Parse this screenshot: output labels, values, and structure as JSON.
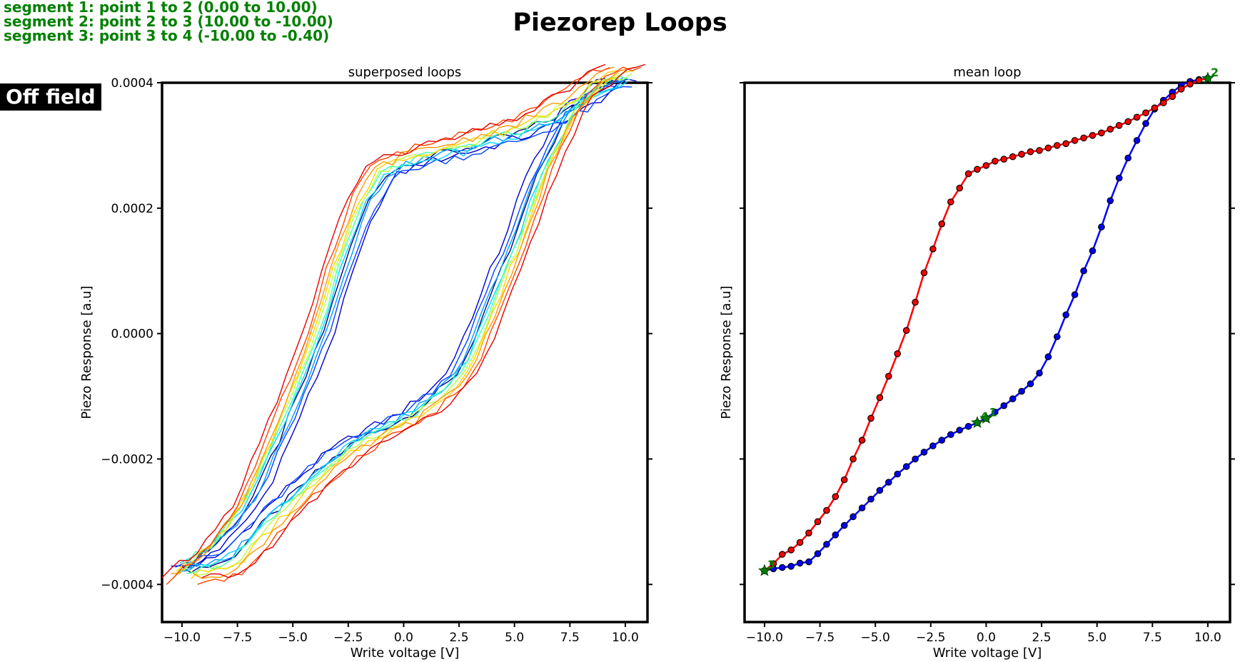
{
  "figure": {
    "title": "Piezorep Loops",
    "field_label": "Off field",
    "segments": [
      "segment 1: point 1 to 2 (0.00 to 10.00)",
      "segment 2: point 2 to 3 (10.00 to -10.00)",
      "segment 3: point 3 to 4 (-10.00 to -0.40)"
    ]
  },
  "colors": {
    "segment_text": "#008000",
    "mean_up": "#ff0000",
    "mean_down": "#0000ff",
    "markers_point": "#008000"
  },
  "chart_data": [
    {
      "type": "line",
      "title": "superposed loops",
      "xlabel": "Write voltage [V]",
      "ylabel": "Piezo Response [a.u]",
      "xlim": [
        -10.9,
        11.0
      ],
      "ylim": [
        -0.00046,
        0.0004
      ],
      "xticks": [
        "-10.0",
        "-7.5",
        "-5.0",
        "-2.5",
        "0.0",
        "2.5",
        "5.0",
        "7.5",
        "10.0"
      ],
      "yticks": [
        "-0.0004",
        "-0.0002",
        "0.0000",
        "0.0002",
        "0.0004"
      ],
      "grid": false,
      "series": [
        {
          "color": "#000080",
          "offset": 0.0,
          "scale": 0.0
        },
        {
          "color": "#0000cd",
          "offset": -0.5,
          "scale": 0.99
        },
        {
          "color": "#0044ff",
          "offset": -0.3,
          "scale": 0.97
        },
        {
          "color": "#0099ff",
          "offset": -0.1,
          "scale": 1.0
        },
        {
          "color": "#00d4ff",
          "offset": 0.1,
          "scale": 0.98
        },
        {
          "color": "#40ffb7",
          "offset": 0.2,
          "scale": 1.0
        },
        {
          "color": "#b7ff40",
          "offset": 0.3,
          "scale": 1.01
        },
        {
          "color": "#ffd400",
          "offset": 0.4,
          "scale": 1.02
        },
        {
          "color": "#ff9900",
          "offset": 0.5,
          "scale": 1.03
        },
        {
          "color": "#ff4400",
          "offset": 0.7,
          "scale": 1.05
        },
        {
          "color": "#e60000",
          "offset": 0.9,
          "scale": 1.04
        }
      ]
    },
    {
      "type": "line",
      "title": "mean loop",
      "xlabel": "Write voltage [V]",
      "ylabel": "Piezo Response [a.u]",
      "xlim": [
        -10.9,
        11.0
      ],
      "ylim": [
        -0.00046,
        0.0004
      ],
      "xticks": [
        "-10.0",
        "-7.5",
        "-5.0",
        "-2.5",
        "0.0",
        "2.5",
        "5.0",
        "7.5",
        "10.0"
      ],
      "grid": false,
      "upper_branch": {
        "x": [
          -10.0,
          -9.6,
          -9.2,
          -8.8,
          -8.4,
          -8.0,
          -7.6,
          -7.2,
          -6.8,
          -6.4,
          -6.0,
          -5.6,
          -5.2,
          -4.8,
          -4.4,
          -4.0,
          -3.6,
          -3.2,
          -2.8,
          -2.4,
          -2.0,
          -1.6,
          -1.2,
          -0.8,
          -0.4,
          0.0,
          0.4,
          0.8,
          1.2,
          1.6,
          2.0,
          2.4,
          2.8,
          3.2,
          3.6,
          4.0,
          4.4,
          4.8,
          5.2,
          5.6,
          6.0,
          6.4,
          6.8,
          7.2,
          7.6,
          8.0,
          8.4,
          8.8,
          9.2,
          9.6,
          10.0
        ],
        "y": [
          -0.000378,
          -0.000367,
          -0.000352,
          -0.000345,
          -0.000333,
          -0.000318,
          -0.0003,
          -0.000282,
          -0.00026,
          -0.000233,
          -0.0002,
          -0.00017,
          -0.000135,
          -0.000102,
          -6.8e-05,
          -3.2e-05,
          5e-06,
          5e-05,
          9.7e-05,
          0.000135,
          0.000175,
          0.00021,
          0.000232,
          0.000255,
          0.000262,
          0.000268,
          0.000275,
          0.000278,
          0.000282,
          0.000286,
          0.00029,
          0.000292,
          0.000296,
          0.0003,
          0.000303,
          0.000308,
          0.000312,
          0.000316,
          0.00032,
          0.000326,
          0.000332,
          0.000338,
          0.000345,
          0.000352,
          0.00036,
          0.000368,
          0.000378,
          0.00039,
          0.000398,
          0.000404,
          0.000407
        ]
      },
      "lower_branch": {
        "x": [
          -10.0,
          -9.6,
          -9.2,
          -8.8,
          -8.4,
          -8.0,
          -7.6,
          -7.2,
          -6.8,
          -6.4,
          -6.0,
          -5.6,
          -5.2,
          -4.8,
          -4.4,
          -4.0,
          -3.6,
          -3.2,
          -2.8,
          -2.4,
          -2.0,
          -1.6,
          -1.2,
          -0.8,
          -0.4,
          0.0,
          0.4,
          0.8,
          1.2,
          1.6,
          2.0,
          2.4,
          2.8,
          3.2,
          3.6,
          4.0,
          4.4,
          4.8,
          5.2,
          5.6,
          6.0,
          6.4,
          6.8,
          7.2,
          7.6,
          8.0,
          8.4,
          8.8,
          9.2,
          9.6,
          10.0
        ],
        "y": [
          -0.000378,
          -0.000375,
          -0.000373,
          -0.000371,
          -0.000366,
          -0.000364,
          -0.000351,
          -0.000336,
          -0.000321,
          -0.000306,
          -0.000292,
          -0.000278,
          -0.000264,
          -0.00025,
          -0.000237,
          -0.000224,
          -0.000212,
          -0.0002,
          -0.000189,
          -0.000179,
          -0.00017,
          -0.000161,
          -0.000154,
          -0.000148,
          -0.000142,
          -0.000135,
          -0.000125,
          -0.000115,
          -0.000104,
          -9.2e-05,
          -8e-05,
          -6.3e-05,
          -3.7e-05,
          -5e-06,
          3e-05,
          6.2e-05,
          0.0001,
          0.000132,
          0.00017,
          0.000212,
          0.000248,
          0.00028,
          0.000308,
          0.000335,
          0.000358,
          0.000372,
          0.000385,
          0.000396,
          0.000402,
          0.000405,
          0.000407
        ]
      },
      "points": [
        {
          "label": "1",
          "x": 0.0,
          "y": -0.000135
        },
        {
          "label": "2",
          "x": 10.0,
          "y": 0.000407
        },
        {
          "label": "3",
          "x": -10.0,
          "y": -0.000378
        },
        {
          "label": "4",
          "x": -0.4,
          "y": -0.000142
        }
      ]
    }
  ]
}
